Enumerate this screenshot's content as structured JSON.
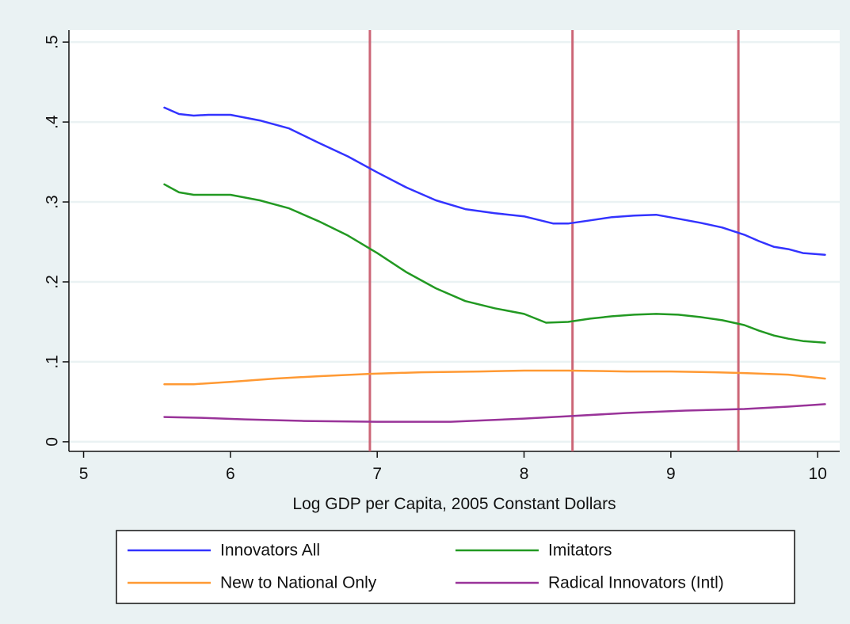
{
  "chart_data": {
    "type": "line",
    "title": "",
    "xlabel": "Log GDP per Capita, 2005 Constant Dollars",
    "ylabel": "",
    "xlim": [
      4.9,
      10.15
    ],
    "ylim": [
      -0.012,
      0.515
    ],
    "xticks": [
      5,
      6,
      7,
      8,
      9,
      10
    ],
    "xtick_labels": [
      "5",
      "6",
      "7",
      "8",
      "9",
      "10"
    ],
    "yticks": [
      0,
      0.1,
      0.2,
      0.3,
      0.4,
      0.5
    ],
    "ytick_labels": [
      "0",
      ".1",
      ".2",
      ".3",
      ".4",
      ".5"
    ],
    "grid": true,
    "legend_position": "bottom",
    "vlines": [
      6.95,
      8.33,
      9.46
    ],
    "vline_color": "#cc6677",
    "colors": {
      "background": "#eaf2f3",
      "plot_background": "#ffffff",
      "grid": "#eaf2f3"
    },
    "series": [
      {
        "name": "Innovators All",
        "color": "#3333ff",
        "x": [
          5.55,
          5.65,
          5.75,
          5.85,
          6.0,
          6.2,
          6.4,
          6.6,
          6.8,
          7.0,
          7.2,
          7.4,
          7.6,
          7.8,
          8.0,
          8.2,
          8.3,
          8.45,
          8.6,
          8.75,
          8.9,
          9.05,
          9.2,
          9.35,
          9.5,
          9.6,
          9.7,
          9.8,
          9.9,
          10.05
        ],
        "y": [
          0.418,
          0.41,
          0.408,
          0.409,
          0.409,
          0.402,
          0.392,
          0.374,
          0.357,
          0.337,
          0.318,
          0.302,
          0.291,
          0.286,
          0.282,
          0.273,
          0.273,
          0.277,
          0.281,
          0.283,
          0.284,
          0.279,
          0.274,
          0.268,
          0.259,
          0.251,
          0.244,
          0.241,
          0.236,
          0.234
        ]
      },
      {
        "name": "Imitators",
        "color": "#229922",
        "x": [
          5.55,
          5.65,
          5.75,
          5.85,
          6.0,
          6.2,
          6.4,
          6.6,
          6.8,
          7.0,
          7.2,
          7.4,
          7.6,
          7.8,
          8.0,
          8.15,
          8.3,
          8.45,
          8.6,
          8.75,
          8.9,
          9.05,
          9.2,
          9.35,
          9.5,
          9.6,
          9.7,
          9.8,
          9.9,
          10.05
        ],
        "y": [
          0.322,
          0.312,
          0.309,
          0.309,
          0.309,
          0.302,
          0.292,
          0.276,
          0.258,
          0.236,
          0.212,
          0.192,
          0.176,
          0.167,
          0.16,
          0.149,
          0.15,
          0.154,
          0.157,
          0.159,
          0.16,
          0.159,
          0.156,
          0.152,
          0.146,
          0.139,
          0.133,
          0.129,
          0.126,
          0.124
        ]
      },
      {
        "name": "New to National Only",
        "color": "#ff9933",
        "x": [
          5.55,
          5.75,
          6.0,
          6.3,
          6.6,
          6.95,
          7.3,
          7.7,
          8.0,
          8.3,
          8.7,
          9.0,
          9.3,
          9.5,
          9.8,
          10.05
        ],
        "y": [
          0.072,
          0.072,
          0.075,
          0.079,
          0.082,
          0.085,
          0.087,
          0.088,
          0.089,
          0.089,
          0.088,
          0.088,
          0.087,
          0.086,
          0.084,
          0.079
        ]
      },
      {
        "name": "Radical Innovators (Intl)",
        "color": "#993399",
        "x": [
          5.55,
          5.8,
          6.1,
          6.5,
          7.0,
          7.5,
          8.0,
          8.3,
          8.7,
          9.1,
          9.5,
          9.8,
          10.05
        ],
        "y": [
          0.031,
          0.03,
          0.028,
          0.026,
          0.025,
          0.025,
          0.029,
          0.032,
          0.036,
          0.039,
          0.041,
          0.044,
          0.047
        ]
      }
    ]
  }
}
